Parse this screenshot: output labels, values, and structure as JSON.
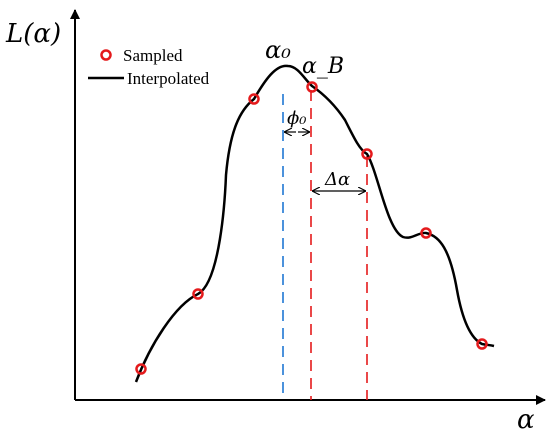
{
  "axes": {
    "y_label": "L(α)",
    "x_label": "α"
  },
  "legend": {
    "sampled": "Sampled",
    "interpolated": "Interpolated",
    "sampled_color": "#e41a1c",
    "curve_color": "#000000"
  },
  "annotations": {
    "alpha0": "α₀",
    "alphaB": "α_B",
    "phi0": "ϕ₀",
    "delta_alpha": "Δα"
  },
  "colors": {
    "alpha0_line": "#1f77d4",
    "alphaB_line": "#e41a1c"
  },
  "chart_data": {
    "type": "line",
    "series": [
      {
        "name": "Sampled",
        "kind": "markers"
      },
      {
        "name": "Interpolated",
        "kind": "curve"
      }
    ]
  }
}
